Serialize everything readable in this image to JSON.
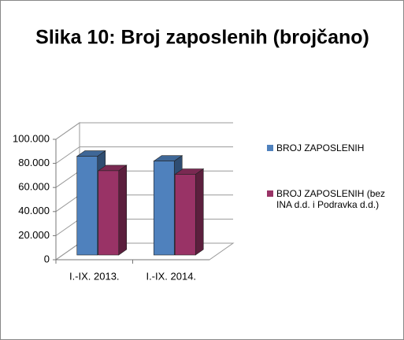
{
  "chart_data": {
    "type": "bar",
    "title": "Slika 10: Broj zaposlenih (brojčano)",
    "categories": [
      "I.-IX. 2013.",
      "I.-IX. 2014."
    ],
    "series": [
      {
        "name": "BROJ ZAPOSLENIH",
        "color": "#4f81bd",
        "values": [
          82000,
          78000
        ]
      },
      {
        "name": "BROJ ZAPOSLENIH (bez INA d.d. i Podravka d.d.)",
        "color": "#993366",
        "values": [
          70000,
          67000
        ]
      }
    ],
    "ylim": [
      0,
      100000
    ],
    "yticks": [
      0,
      {
        "value": 20000,
        "label": "20.000"
      },
      {
        "value": 40000,
        "label": "40.000"
      },
      {
        "value": 60000,
        "label": "60.000"
      },
      {
        "value": 80000,
        "label": "80.000"
      },
      {
        "value": 100000,
        "label": "100.000"
      }
    ],
    "grid": true,
    "legend": "right"
  }
}
